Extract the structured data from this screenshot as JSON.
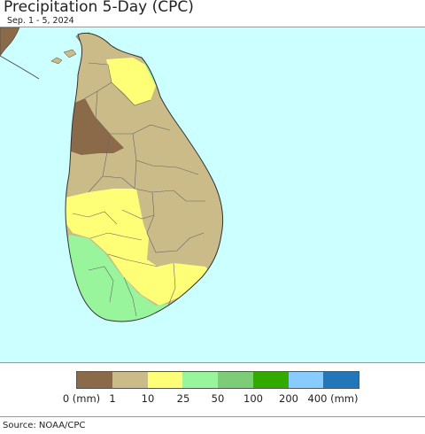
{
  "header": {
    "title": "Precipitation 5-Day (CPC)",
    "subtitle": "Sep. 1 - 5, 2024"
  },
  "map": {
    "region": "Sri Lanka",
    "colors": {
      "ocean": "#ccffff",
      "land_other": "#8b6a4a",
      "border": "#444444"
    }
  },
  "legend": {
    "swatches": [
      {
        "color": "#8b6a4a"
      },
      {
        "color": "#cbbb88"
      },
      {
        "color": "#ffff77"
      },
      {
        "color": "#99f59b"
      },
      {
        "color": "#7dcc78"
      },
      {
        "color": "#33aa00"
      },
      {
        "color": "#88ccff"
      },
      {
        "color": "#2277bb"
      }
    ],
    "labels": [
      "0 (mm)",
      "1",
      "10",
      "25",
      "50",
      "100",
      "200",
      "400 (mm)"
    ]
  },
  "footer": {
    "source": "Source: NOAA/CPC"
  }
}
